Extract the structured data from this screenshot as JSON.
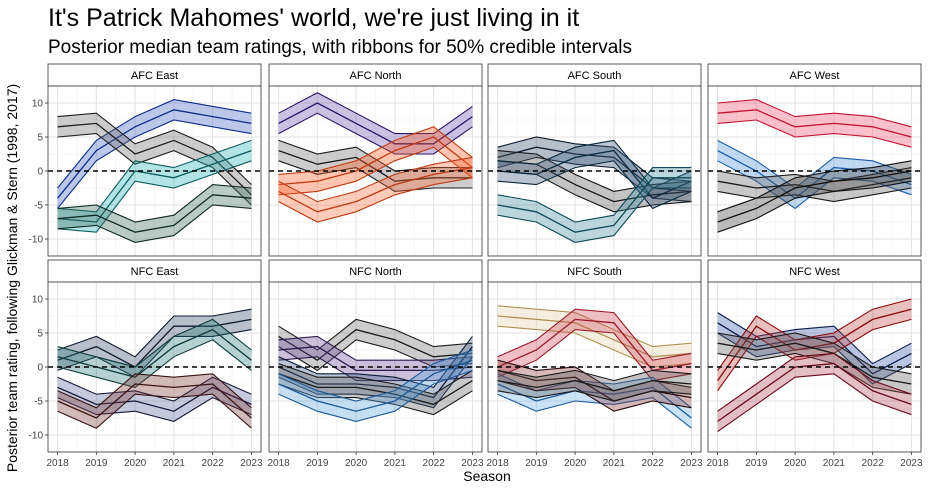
{
  "title": "It's Patrick Mahomes' world, we're just living in it",
  "subtitle": "Posterior median team ratings, with ribbons for 50% credible intervals",
  "chart_data": {
    "type": "line",
    "xlabel": "Season",
    "ylabel": "Posterior team rating, following Glickman & Stern (1998, 2017)",
    "x": [
      2018,
      2019,
      2020,
      2021,
      2022,
      2023
    ],
    "x_ticks": [
      "2018",
      "2019",
      "2020",
      "2021",
      "2022",
      "2023"
    ],
    "y_ticks": [
      -10,
      -5,
      0,
      5,
      10
    ],
    "ylim": [
      -12.5,
      12.5
    ],
    "reference_line": 0,
    "panels": [
      {
        "name": "AFC East",
        "series": [
          {
            "color": "#0C2C8A",
            "fill": "#3E5EC2",
            "median": [
              -4,
              3,
              6.5,
              9,
              8,
              7
            ],
            "width": 3
          },
          {
            "color": "#1F1F1F",
            "fill": "#6E6E6E",
            "median": [
              6.5,
              7,
              2.5,
              4.5,
              2,
              -3.5
            ],
            "width": 3
          },
          {
            "color": "#0E5C5E",
            "fill": "#27B4B6",
            "median": [
              -7,
              -7.5,
              0,
              -1,
              1,
              3
            ],
            "width": 3
          },
          {
            "color": "#0E2A22",
            "fill": "#3A6A5C",
            "median": [
              -7,
              -6.5,
              -9,
              -8,
              -3.5,
              -4
            ],
            "width": 3
          }
        ]
      },
      {
        "name": "AFC North",
        "series": [
          {
            "color": "#2A1466",
            "fill": "#6A4FB0",
            "median": [
              7,
              10,
              7,
              4,
              4,
              8
            ],
            "width": 3
          },
          {
            "color": "#1A1A1A",
            "fill": "#707070",
            "median": [
              3,
              1,
              2,
              -1.5,
              -1,
              -1
            ],
            "width": 3
          },
          {
            "color": "#C43A10",
            "fill": "#FF5A20",
            "median": [
              -2,
              -1.5,
              0,
              3,
              5,
              0.5
            ],
            "width": 3
          },
          {
            "color": "#C03A12",
            "fill": "#FF6A3A",
            "median": [
              -3,
              -6,
              -4.5,
              -2,
              -0.5,
              0.5
            ],
            "width": 3
          }
        ]
      },
      {
        "name": "AFC South",
        "series": [
          {
            "color": "#0E1C30",
            "fill": "#2D4A6A",
            "median": [
              2,
              3.5,
              2.5,
              2,
              -2.5,
              -3
            ],
            "width": 3
          },
          {
            "color": "#151515",
            "fill": "#555555",
            "median": [
              1.5,
              1,
              -2,
              -4.5,
              -3.5,
              -3
            ],
            "width": 3
          },
          {
            "color": "#0A2A40",
            "fill": "#3B5A7A",
            "median": [
              0,
              -0.5,
              2,
              3,
              -4,
              -1.5
            ],
            "width": 3
          },
          {
            "color": "#0E4A58",
            "fill": "#3B8A9A",
            "median": [
              -5,
              -6,
              -9,
              -8,
              -1,
              -1
            ],
            "width": 3
          }
        ]
      },
      {
        "name": "AFC West",
        "series": [
          {
            "color": "#C41230",
            "fill": "#F04A6A",
            "median": [
              8.5,
              9,
              6.5,
              7,
              6.5,
              5
            ],
            "width": 3
          },
          {
            "color": "#1A5CAA",
            "fill": "#4A90D8",
            "median": [
              3,
              0,
              -4,
              0.5,
              0,
              -2
            ],
            "width": 3
          },
          {
            "color": "#1A1A1A",
            "fill": "#606060",
            "median": [
              -1.5,
              -2.5,
              -2,
              -3,
              -2,
              -1
            ],
            "width": 3
          },
          {
            "color": "#101010",
            "fill": "#404040",
            "median": [
              -7.5,
              -5.5,
              -2.5,
              -1.5,
              -1,
              0
            ],
            "width": 3
          }
        ]
      },
      {
        "name": "NFC East",
        "series": [
          {
            "color": "#0E1C30",
            "fill": "#3A4A6A",
            "median": [
              1,
              3,
              0,
              6,
              6,
              7
            ],
            "width": 3
          },
          {
            "color": "#0E3A3A",
            "fill": "#2A7A7A",
            "median": [
              1.5,
              0,
              -1.5,
              3,
              5.5,
              1
            ],
            "width": 3
          },
          {
            "color": "#1A1A3A",
            "fill": "#5A6A9A",
            "median": [
              -3,
              -5.5,
              -5,
              -6.5,
              -3,
              -5.5
            ],
            "width": 3
          },
          {
            "color": "#3A1414",
            "fill": "#7A3A3A",
            "median": [
              -5,
              -7.5,
              -2.5,
              -3,
              -2.5,
              -7.5
            ],
            "width": 3
          }
        ]
      },
      {
        "name": "NFC North",
        "series": [
          {
            "color": "#1A1A1A",
            "fill": "#707070",
            "median": [
              4.5,
              1,
              5.5,
              4,
              1.5,
              2
            ],
            "width": 3
          },
          {
            "color": "#2A1A4A",
            "fill": "#6A4A9A",
            "median": [
              2.5,
              3,
              -0.5,
              -0.5,
              -0.5,
              0
            ],
            "width": 3
          },
          {
            "color": "#0A1A3A",
            "fill": "#3A5A8A",
            "median": [
              0,
              -2.5,
              -2.5,
              -3,
              -4.5,
              3
            ],
            "width": 3
          },
          {
            "color": "#1A1A1A",
            "fill": "#606060",
            "median": [
              -1,
              -3,
              -3,
              -4,
              -5.5,
              -2
            ],
            "width": 3
          },
          {
            "color": "#1A5A9A",
            "fill": "#5AA0DA",
            "median": [
              -2.5,
              -5,
              -6.5,
              -5,
              -1,
              1
            ],
            "width": 3
          }
        ]
      },
      {
        "name": "NFC South",
        "series": [
          {
            "color": "#B09050",
            "fill": "#E6D2AA",
            "median": [
              7.5,
              7,
              6.5,
              4,
              1.5,
              2
            ],
            "width": 3
          },
          {
            "color": "#9A1A2A",
            "fill": "#D04A5A",
            "median": [
              0,
              2.5,
              7,
              6.5,
              -0.5,
              0.5
            ],
            "width": 3
          },
          {
            "color": "#1A5A9A",
            "fill": "#6AAEE8",
            "median": [
              -2.5,
              -5,
              -3.5,
              -4,
              -3,
              -7.5
            ],
            "width": 3
          },
          {
            "color": "#2A0A0A",
            "fill": "#8A3A3A",
            "median": [
              -0.5,
              -2,
              -1.5,
              -5,
              -3.5,
              -4.5
            ],
            "width": 3
          },
          {
            "color": "#1A1A1A",
            "fill": "#5A5A5A",
            "median": [
              -2,
              -3,
              -2,
              -3.5,
              -2,
              -2.5
            ],
            "width": 3
          }
        ]
      },
      {
        "name": "NFC West",
        "series": [
          {
            "color": "#0A1A4A",
            "fill": "#3A5AAA",
            "median": [
              6.5,
              3,
              4,
              4.5,
              -1,
              2
            ],
            "width": 3
          },
          {
            "color": "#8A0A0A",
            "fill": "#C04A4A",
            "median": [
              -2,
              6,
              2.5,
              3.5,
              7,
              8.5
            ],
            "width": 3
          },
          {
            "color": "#1A1A1A",
            "fill": "#606060",
            "median": [
              3.5,
              2.5,
              3.5,
              2,
              -1.5,
              -2.5
            ],
            "width": 3
          },
          {
            "color": "#6A0A1A",
            "fill": "#B04A5A",
            "median": [
              -8,
              -4,
              0,
              0.5,
              -3.5,
              -5.5
            ],
            "width": 3
          }
        ]
      }
    ]
  }
}
